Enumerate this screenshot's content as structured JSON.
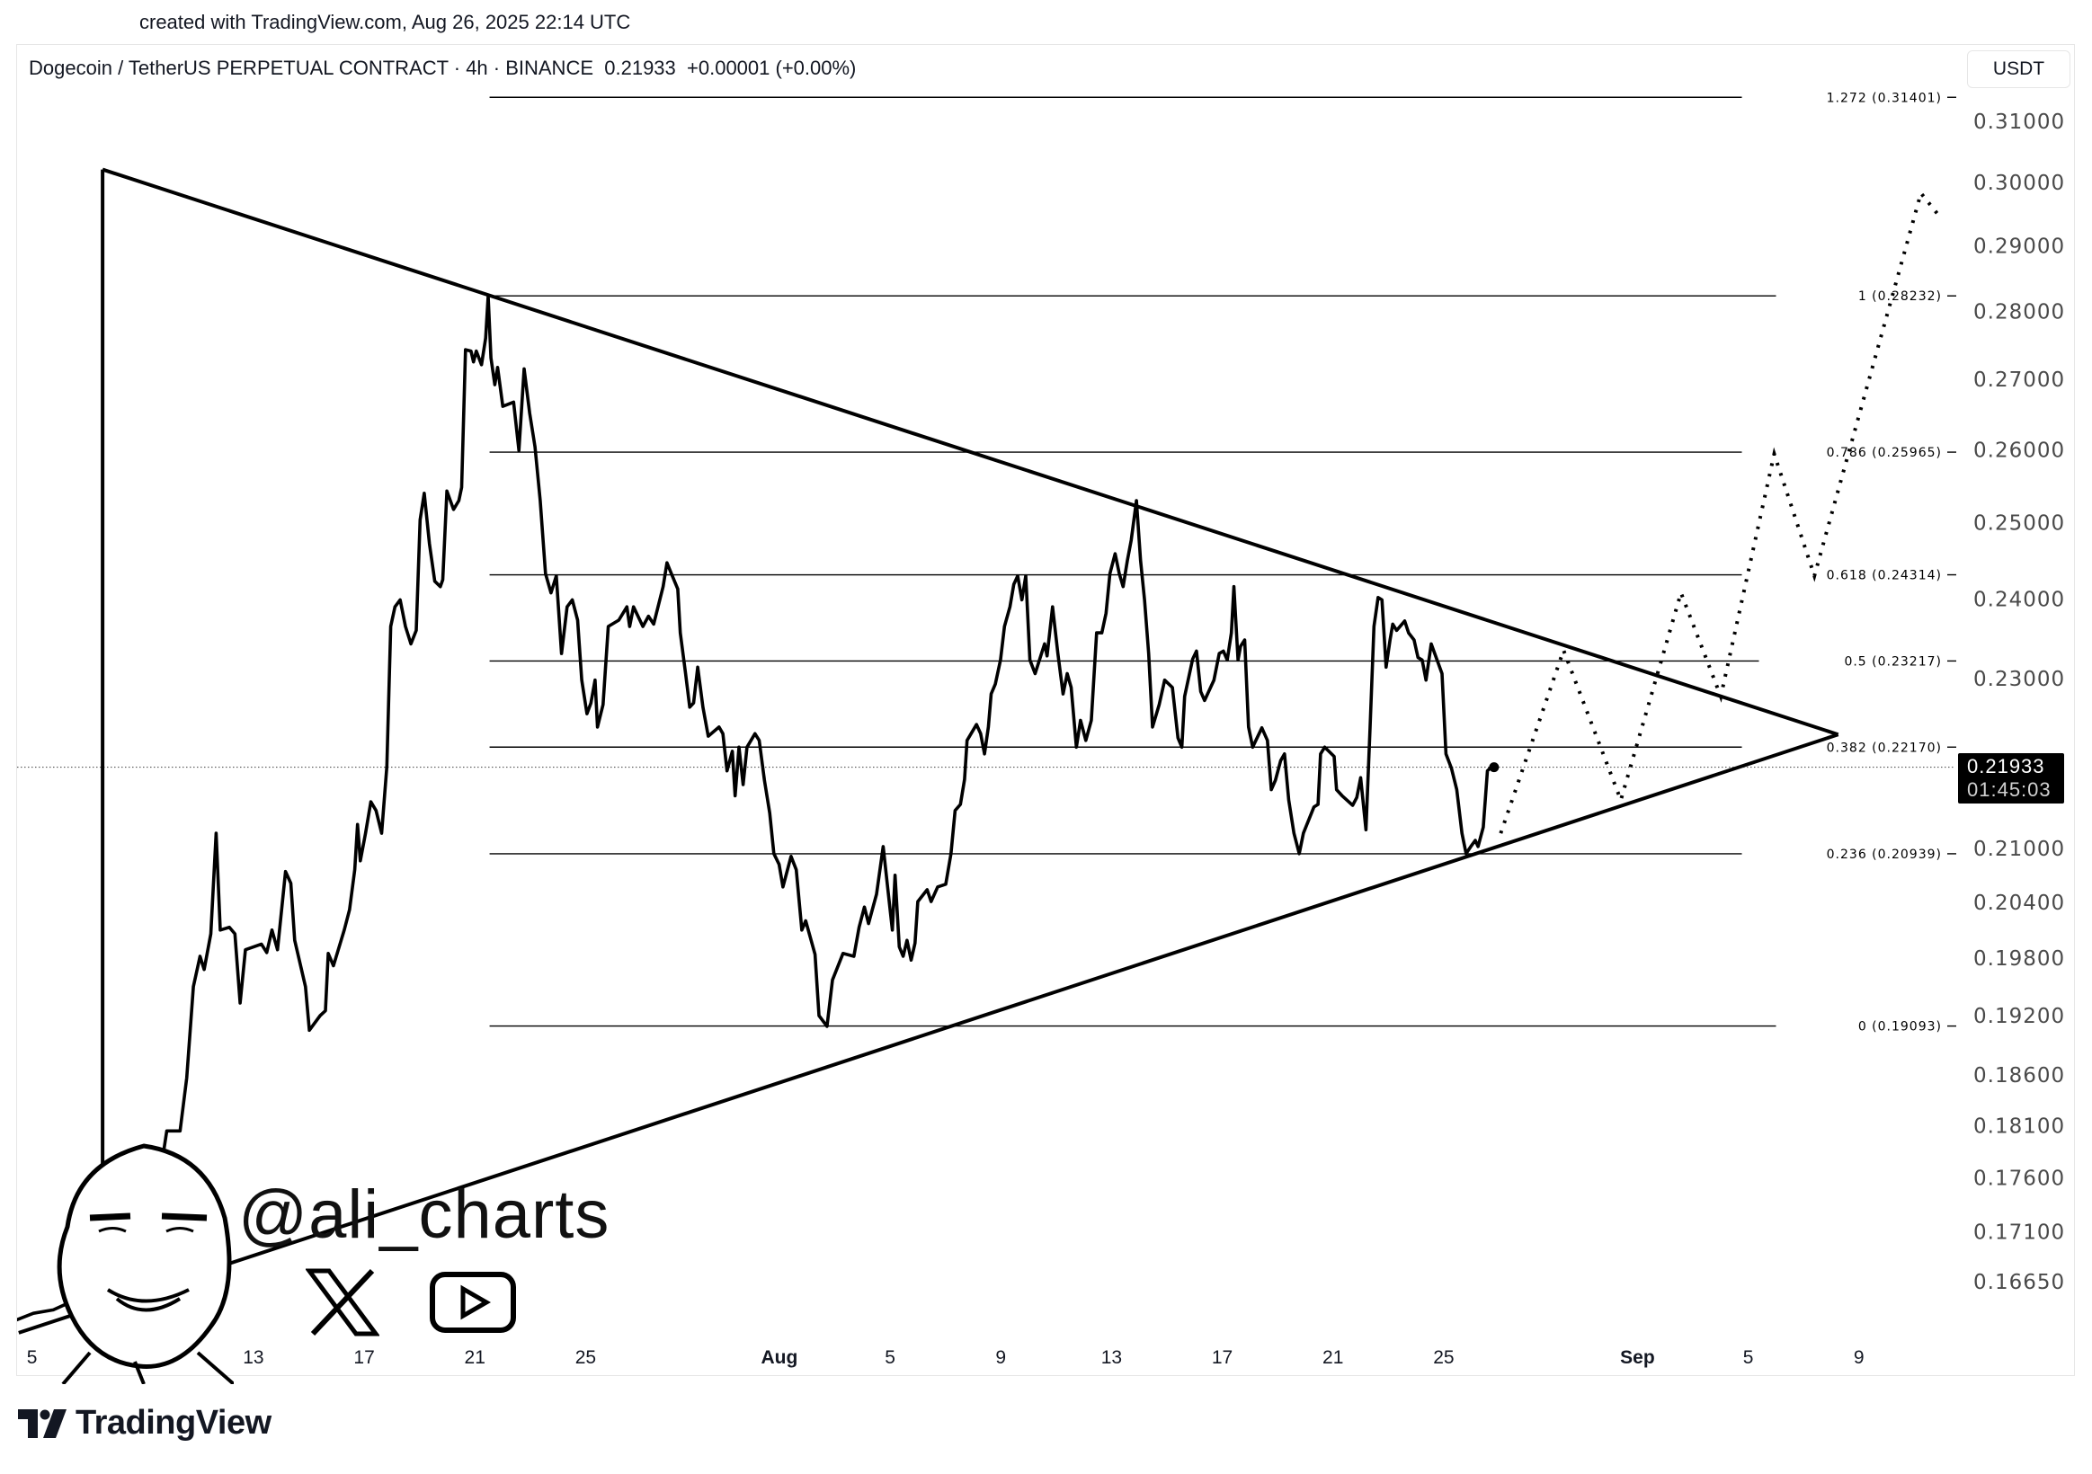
{
  "header": {
    "created_text": "created with TradingView.com, Aug 26, 2025 22:14 UTC",
    "symbol": "Dogecoin / TetherUS PERPETUAL CONTRACT · 4h · BINANCE",
    "last_price": "0.21933",
    "change": "+0.00001 (+0.00%)"
  },
  "price_axis": {
    "currency_button": "USDT",
    "last_price_label": "0.21933",
    "countdown": "01:45:03"
  },
  "watermark": {
    "handle": "@ali_charts",
    "icons": [
      "x-logo-icon",
      "youtube-icon",
      "avatar-caricature"
    ]
  },
  "footer": {
    "brand": "TradingView"
  },
  "colors": {
    "line": "#000000",
    "axis_text": "#4a4a4a",
    "grid_border": "#e6e6e6"
  },
  "chart_data": {
    "type": "line",
    "title": "Dogecoin / TetherUS PERPETUAL CONTRACT · 4h · BINANCE",
    "x_unit": "days since Jul 5, 2025",
    "y_scale": "log",
    "ylim": [
      0.16,
      0.32
    ],
    "y_ticks": [
      "0.31000",
      "0.30000",
      "0.29000",
      "0.28000",
      "0.27000",
      "0.26000",
      "0.25000",
      "0.24000",
      "0.23000",
      "0.21000",
      "0.20400",
      "0.19800",
      "0.19200",
      "0.18600",
      "0.18100",
      "0.17600",
      "0.17100",
      "0.16650"
    ],
    "x_ticks": [
      {
        "t": 0,
        "label": "5"
      },
      {
        "t": 4,
        "label": "9"
      },
      {
        "t": 8,
        "label": "13"
      },
      {
        "t": 12,
        "label": "17"
      },
      {
        "t": 16,
        "label": "21"
      },
      {
        "t": 20,
        "label": "25"
      },
      {
        "t": 27,
        "label": "Aug",
        "bold": true
      },
      {
        "t": 31,
        "label": "5"
      },
      {
        "t": 35,
        "label": "9"
      },
      {
        "t": 39,
        "label": "13"
      },
      {
        "t": 43,
        "label": "17"
      },
      {
        "t": 47,
        "label": "21"
      },
      {
        "t": 51,
        "label": "25"
      },
      {
        "t": 58,
        "label": "Sep",
        "bold": true
      },
      {
        "t": 62,
        "label": "5"
      },
      {
        "t": 66,
        "label": "9"
      }
    ],
    "last_price": 0.21933,
    "price": [
      [
        -0.58,
        0.1631
      ],
      [
        0.05,
        0.1637
      ],
      [
        0.77,
        0.164
      ],
      [
        1.49,
        0.1648
      ],
      [
        2.22,
        0.166
      ],
      [
        2.94,
        0.1684
      ],
      [
        3.66,
        0.1702
      ],
      [
        4.14,
        0.1733
      ],
      [
        4.63,
        0.1764
      ],
      [
        4.87,
        0.1805
      ],
      [
        5.35,
        0.1805
      ],
      [
        5.59,
        0.1857
      ],
      [
        5.83,
        0.195
      ],
      [
        6.07,
        0.1982
      ],
      [
        6.22,
        0.1968
      ],
      [
        6.46,
        0.2006
      ],
      [
        6.65,
        0.2117
      ],
      [
        6.8,
        0.201
      ],
      [
        7.13,
        0.2013
      ],
      [
        7.33,
        0.2006
      ],
      [
        7.52,
        0.1933
      ],
      [
        7.71,
        0.1989
      ],
      [
        8.29,
        0.1995
      ],
      [
        8.48,
        0.1986
      ],
      [
        8.67,
        0.201
      ],
      [
        8.87,
        0.1989
      ],
      [
        9.16,
        0.2074
      ],
      [
        9.35,
        0.2061
      ],
      [
        9.49,
        0.1999
      ],
      [
        9.88,
        0.195
      ],
      [
        10.02,
        0.1905
      ],
      [
        10.41,
        0.192
      ],
      [
        10.6,
        0.1925
      ],
      [
        10.7,
        0.1985
      ],
      [
        10.89,
        0.1972
      ],
      [
        11.28,
        0.201
      ],
      [
        11.47,
        0.2032
      ],
      [
        11.66,
        0.2076
      ],
      [
        11.76,
        0.2127
      ],
      [
        11.86,
        0.2086
      ],
      [
        12.05,
        0.2117
      ],
      [
        12.24,
        0.2153
      ],
      [
        12.43,
        0.2143
      ],
      [
        12.63,
        0.2117
      ],
      [
        12.82,
        0.2194
      ],
      [
        12.96,
        0.2365
      ],
      [
        13.11,
        0.239
      ],
      [
        13.3,
        0.2399
      ],
      [
        13.49,
        0.2365
      ],
      [
        13.69,
        0.2343
      ],
      [
        13.88,
        0.236
      ],
      [
        14.02,
        0.2504
      ],
      [
        14.17,
        0.254
      ],
      [
        14.36,
        0.2472
      ],
      [
        14.55,
        0.2423
      ],
      [
        14.75,
        0.2416
      ],
      [
        14.84,
        0.2425
      ],
      [
        14.99,
        0.2543
      ],
      [
        15.23,
        0.2518
      ],
      [
        15.42,
        0.253
      ],
      [
        15.52,
        0.2548
      ],
      [
        15.66,
        0.2743
      ],
      [
        15.86,
        0.2741
      ],
      [
        15.95,
        0.2725
      ],
      [
        16.05,
        0.2741
      ],
      [
        16.24,
        0.2721
      ],
      [
        16.39,
        0.276
      ],
      [
        16.48,
        0.2823
      ],
      [
        16.58,
        0.2731
      ],
      [
        16.72,
        0.2692
      ],
      [
        16.82,
        0.2717
      ],
      [
        17.01,
        0.2661
      ],
      [
        17.4,
        0.2667
      ],
      [
        17.59,
        0.2599
      ],
      [
        17.78,
        0.2715
      ],
      [
        17.98,
        0.2651
      ],
      [
        18.17,
        0.2604
      ],
      [
        18.36,
        0.253
      ],
      [
        18.55,
        0.2433
      ],
      [
        18.75,
        0.2408
      ],
      [
        18.94,
        0.243
      ],
      [
        19.13,
        0.2331
      ],
      [
        19.33,
        0.239
      ],
      [
        19.52,
        0.2399
      ],
      [
        19.71,
        0.2373
      ],
      [
        19.86,
        0.2298
      ],
      [
        20.05,
        0.2257
      ],
      [
        20.19,
        0.227
      ],
      [
        20.34,
        0.2298
      ],
      [
        20.43,
        0.2241
      ],
      [
        20.63,
        0.2268
      ],
      [
        20.82,
        0.2365
      ],
      [
        21.2,
        0.2373
      ],
      [
        21.49,
        0.239
      ],
      [
        21.59,
        0.2365
      ],
      [
        21.73,
        0.239
      ],
      [
        22.07,
        0.2365
      ],
      [
        22.27,
        0.2378
      ],
      [
        22.46,
        0.2368
      ],
      [
        22.8,
        0.2416
      ],
      [
        22.94,
        0.2447
      ],
      [
        23.13,
        0.243
      ],
      [
        23.33,
        0.2413
      ],
      [
        23.42,
        0.2357
      ],
      [
        23.61,
        0.2306
      ],
      [
        23.76,
        0.2265
      ],
      [
        23.9,
        0.227
      ],
      [
        24.05,
        0.2314
      ],
      [
        24.24,
        0.2265
      ],
      [
        24.43,
        0.223
      ],
      [
        24.82,
        0.2241
      ],
      [
        24.96,
        0.2233
      ],
      [
        25.11,
        0.2189
      ],
      [
        25.3,
        0.2212
      ],
      [
        25.4,
        0.216
      ],
      [
        25.54,
        0.2217
      ],
      [
        25.69,
        0.2173
      ],
      [
        25.83,
        0.2217
      ],
      [
        26.12,
        0.2233
      ],
      [
        26.27,
        0.2225
      ],
      [
        26.46,
        0.2178
      ],
      [
        26.65,
        0.214
      ],
      [
        26.8,
        0.2094
      ],
      [
        26.99,
        0.2082
      ],
      [
        27.13,
        0.2057
      ],
      [
        27.42,
        0.2091
      ],
      [
        27.61,
        0.2076
      ],
      [
        27.81,
        0.201
      ],
      [
        27.95,
        0.202
      ],
      [
        28.29,
        0.1984
      ],
      [
        28.43,
        0.192
      ],
      [
        28.72,
        0.1909
      ],
      [
        28.92,
        0.1957
      ],
      [
        29.3,
        0.1985
      ],
      [
        29.69,
        0.1982
      ],
      [
        29.88,
        0.2013
      ],
      [
        30.07,
        0.2035
      ],
      [
        30.22,
        0.2017
      ],
      [
        30.51,
        0.2049
      ],
      [
        30.75,
        0.2102
      ],
      [
        30.94,
        0.2049
      ],
      [
        31.08,
        0.201
      ],
      [
        31.18,
        0.207
      ],
      [
        31.33,
        0.1992
      ],
      [
        31.47,
        0.1982
      ],
      [
        31.61,
        0.1999
      ],
      [
        31.76,
        0.1978
      ],
      [
        31.9,
        0.1996
      ],
      [
        32.0,
        0.2041
      ],
      [
        32.34,
        0.2054
      ],
      [
        32.48,
        0.2041
      ],
      [
        32.72,
        0.2057
      ],
      [
        33.01,
        0.206
      ],
      [
        33.2,
        0.2094
      ],
      [
        33.35,
        0.2143
      ],
      [
        33.54,
        0.215
      ],
      [
        33.69,
        0.2179
      ],
      [
        33.78,
        0.2225
      ],
      [
        34.12,
        0.2244
      ],
      [
        34.27,
        0.2233
      ],
      [
        34.41,
        0.2209
      ],
      [
        34.55,
        0.2241
      ],
      [
        34.65,
        0.2281
      ],
      [
        34.8,
        0.2293
      ],
      [
        34.99,
        0.2323
      ],
      [
        35.13,
        0.2365
      ],
      [
        35.33,
        0.239
      ],
      [
        35.47,
        0.2419
      ],
      [
        35.61,
        0.243
      ],
      [
        35.76,
        0.2399
      ],
      [
        35.9,
        0.243
      ],
      [
        36.05,
        0.2323
      ],
      [
        36.24,
        0.2306
      ],
      [
        36.58,
        0.2343
      ],
      [
        36.67,
        0.2328
      ],
      [
        36.87,
        0.239
      ],
      [
        37.06,
        0.2331
      ],
      [
        37.25,
        0.2281
      ],
      [
        37.4,
        0.2306
      ],
      [
        37.54,
        0.2289
      ],
      [
        37.73,
        0.2217
      ],
      [
        37.88,
        0.2249
      ],
      [
        38.07,
        0.2225
      ],
      [
        38.27,
        0.2249
      ],
      [
        38.46,
        0.2357
      ],
      [
        38.65,
        0.2357
      ],
      [
        38.8,
        0.2382
      ],
      [
        38.94,
        0.2433
      ],
      [
        39.13,
        0.2459
      ],
      [
        39.28,
        0.2433
      ],
      [
        39.42,
        0.2416
      ],
      [
        39.57,
        0.245
      ],
      [
        39.71,
        0.2477
      ],
      [
        39.9,
        0.253
      ],
      [
        40.05,
        0.245
      ],
      [
        40.19,
        0.2399
      ],
      [
        40.34,
        0.2331
      ],
      [
        40.48,
        0.2241
      ],
      [
        40.72,
        0.2268
      ],
      [
        40.92,
        0.2298
      ],
      [
        41.2,
        0.2289
      ],
      [
        41.4,
        0.2228
      ],
      [
        41.54,
        0.2217
      ],
      [
        41.64,
        0.2278
      ],
      [
        41.93,
        0.2324
      ],
      [
        42.07,
        0.2334
      ],
      [
        42.22,
        0.2284
      ],
      [
        42.36,
        0.2273
      ],
      [
        42.7,
        0.2298
      ],
      [
        42.89,
        0.2331
      ],
      [
        43.04,
        0.2334
      ],
      [
        43.18,
        0.2323
      ],
      [
        43.33,
        0.2357
      ],
      [
        43.42,
        0.2416
      ],
      [
        43.57,
        0.2323
      ],
      [
        43.66,
        0.234
      ],
      [
        43.81,
        0.2348
      ],
      [
        43.95,
        0.2241
      ],
      [
        44.1,
        0.2217
      ],
      [
        44.43,
        0.224
      ],
      [
        44.63,
        0.2225
      ],
      [
        44.77,
        0.2167
      ],
      [
        44.92,
        0.2178
      ],
      [
        45.11,
        0.2201
      ],
      [
        45.25,
        0.2209
      ],
      [
        45.4,
        0.2155
      ],
      [
        45.59,
        0.2117
      ],
      [
        45.78,
        0.2094
      ],
      [
        45.93,
        0.2117
      ],
      [
        46.31,
        0.2147
      ],
      [
        46.46,
        0.215
      ],
      [
        46.55,
        0.2209
      ],
      [
        46.7,
        0.2217
      ],
      [
        47.04,
        0.2206
      ],
      [
        47.13,
        0.2167
      ],
      [
        47.33,
        0.216
      ],
      [
        47.71,
        0.2149
      ],
      [
        47.86,
        0.2158
      ],
      [
        48.0,
        0.2181
      ],
      [
        48.19,
        0.2121
      ],
      [
        48.34,
        0.2241
      ],
      [
        48.48,
        0.2365
      ],
      [
        48.63,
        0.2402
      ],
      [
        48.77,
        0.2399
      ],
      [
        48.92,
        0.2314
      ],
      [
        49.06,
        0.2348
      ],
      [
        49.16,
        0.2368
      ],
      [
        49.3,
        0.236
      ],
      [
        49.59,
        0.2372
      ],
      [
        49.73,
        0.2357
      ],
      [
        49.93,
        0.2348
      ],
      [
        50.07,
        0.2326
      ],
      [
        50.22,
        0.2323
      ],
      [
        50.36,
        0.2298
      ],
      [
        50.55,
        0.2343
      ],
      [
        50.94,
        0.2306
      ],
      [
        51.08,
        0.2209
      ],
      [
        51.28,
        0.2192
      ],
      [
        51.47,
        0.2167
      ],
      [
        51.66,
        0.2117
      ],
      [
        51.81,
        0.2094
      ],
      [
        52.0,
        0.2103
      ],
      [
        52.14,
        0.2109
      ],
      [
        52.24,
        0.2102
      ],
      [
        52.43,
        0.2124
      ],
      [
        52.58,
        0.2189
      ],
      [
        52.72,
        0.21933
      ]
    ],
    "projection": [
      [
        53.06,
        0.2117
      ],
      [
        55.33,
        0.2335
      ],
      [
        57.4,
        0.2155
      ],
      [
        59.57,
        0.2408
      ],
      [
        61.01,
        0.2278
      ],
      [
        62.94,
        0.2594
      ],
      [
        64.39,
        0.243
      ],
      [
        68.24,
        0.2983
      ],
      [
        68.82,
        0.2951
      ]
    ],
    "triangle": {
      "upper": [
        [
          2.55,
          0.3021
        ],
        [
          65.25,
          0.2232
        ]
      ],
      "lower": [
        [
          -0.48,
          0.162
        ],
        [
          65.25,
          0.2232
        ]
      ],
      "vertical_t": 2.55
    },
    "fib_range_t": [
      16.53,
      65.1
    ],
    "fib_levels": [
      {
        "ratio": "1.272",
        "price": 0.31401,
        "label": "1.272 (0.31401)"
      },
      {
        "ratio": "1",
        "price": 0.28232,
        "label": "1 (0.28232)"
      },
      {
        "ratio": "0.786",
        "price": 0.25965,
        "label": "0.786 (0.25965)"
      },
      {
        "ratio": "0.618",
        "price": 0.24314,
        "label": "0.618 (0.24314)"
      },
      {
        "ratio": "0.5",
        "price": 0.23217,
        "label": "0.5 (0.23217)"
      },
      {
        "ratio": "0.382",
        "price": 0.2217,
        "label": "0.382 (0.22170)"
      },
      {
        "ratio": "0.236",
        "price": 0.20939,
        "label": "0.236 (0.20939)"
      },
      {
        "ratio": "0",
        "price": 0.19093,
        "label": "0 (0.19093)"
      }
    ]
  }
}
